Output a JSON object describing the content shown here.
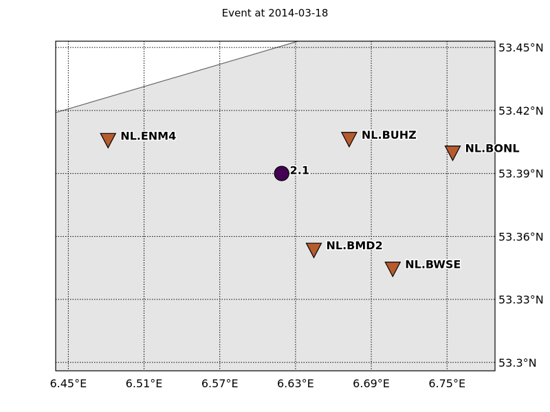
{
  "chart_data": {
    "type": "scatter",
    "title": "Event at 2014-03-18",
    "xlim": [
      6.44,
      6.788
    ],
    "ylim": [
      53.296,
      53.453
    ],
    "grid": true,
    "xticks": [
      {
        "value": 6.45,
        "label": "6.45°E"
      },
      {
        "value": 6.51,
        "label": "6.51°E"
      },
      {
        "value": 6.57,
        "label": "6.57°E"
      },
      {
        "value": 6.63,
        "label": "6.63°E"
      },
      {
        "value": 6.69,
        "label": "6.69°E"
      },
      {
        "value": 6.75,
        "label": "6.75°E"
      }
    ],
    "yticks": [
      {
        "value": 53.3,
        "label": "53.3°N"
      },
      {
        "value": 53.33,
        "label": "53.33°N"
      },
      {
        "value": 53.36,
        "label": "53.36°N"
      },
      {
        "value": 53.39,
        "label": "53.39°N"
      },
      {
        "value": 53.42,
        "label": "53.42°N"
      },
      {
        "value": 53.45,
        "label": "53.45°N"
      }
    ],
    "coastline": [
      [
        6.44,
        53.419
      ],
      [
        6.632,
        53.453
      ]
    ],
    "stations": [
      {
        "name": "NL.ENM4",
        "lon": 6.4815,
        "lat": 53.4058
      },
      {
        "name": "NL.BUHZ",
        "lon": 6.6725,
        "lat": 53.4063
      },
      {
        "name": "NL.BONL",
        "lon": 6.7545,
        "lat": 53.3998
      },
      {
        "name": "NL.BMD2",
        "lon": 6.6445,
        "lat": 53.3535
      },
      {
        "name": "NL.BWSE",
        "lon": 6.707,
        "lat": 53.3445
      }
    ],
    "events": [
      {
        "label": "2.1",
        "lon": 6.619,
        "lat": 53.39
      }
    ],
    "colors": {
      "land": "#e5e5e5",
      "sea": "#ffffff",
      "station": "#b65b2e",
      "event": "#440154",
      "coastline": "#666666"
    }
  }
}
